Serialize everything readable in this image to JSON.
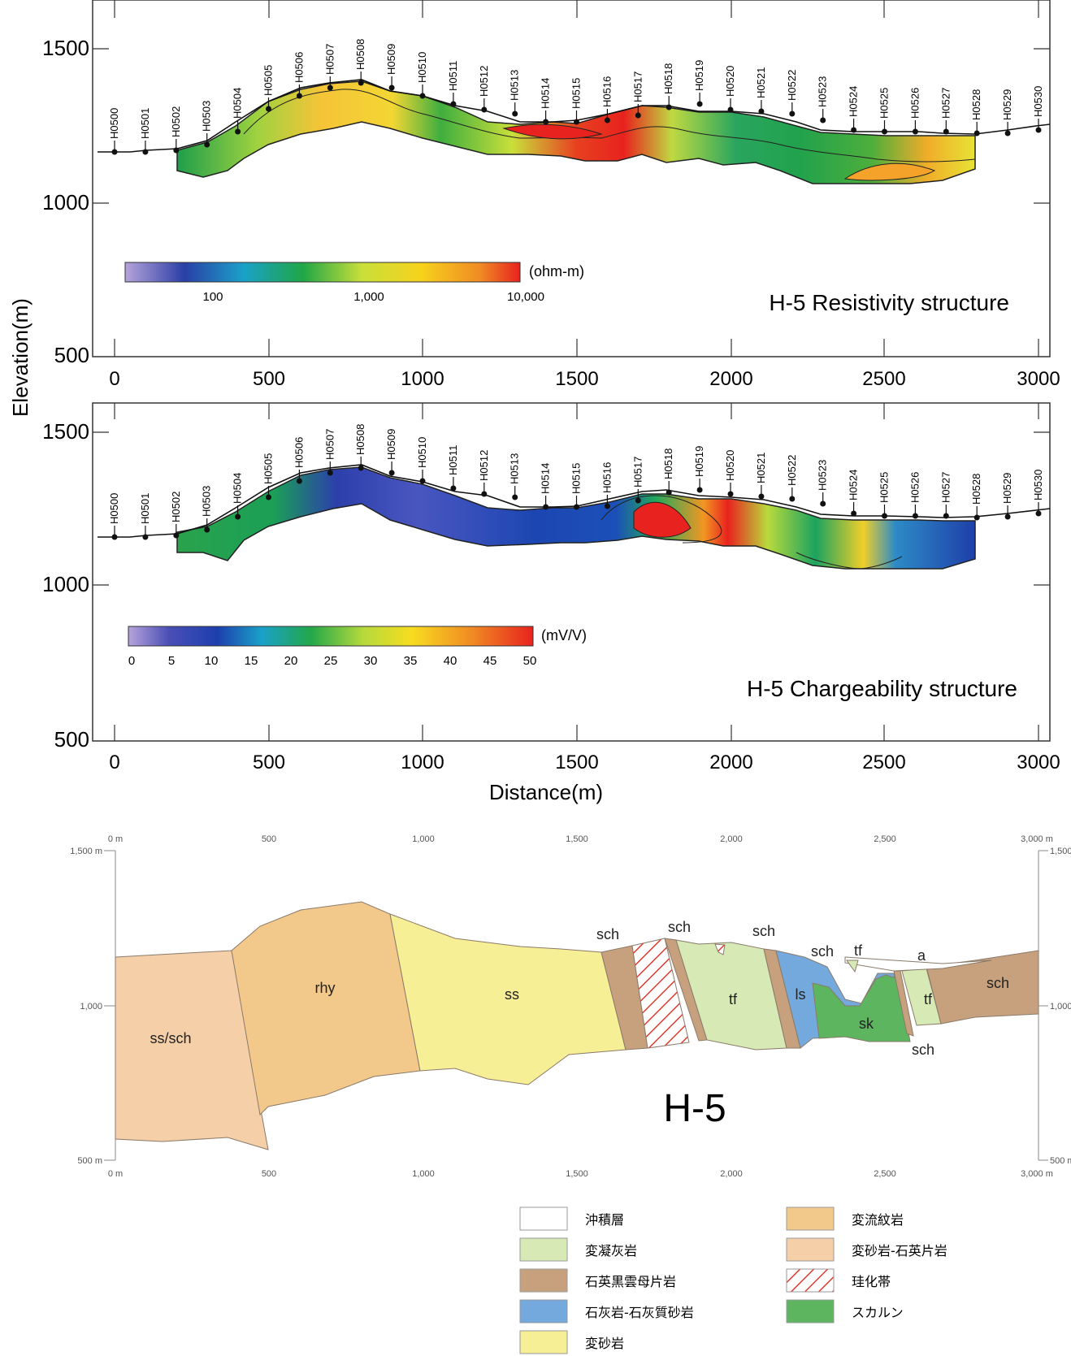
{
  "y_axis_label": "Elevation(m)",
  "x_axis_label": "Distance(m)",
  "resistivity_panel": {
    "title": "H-5 Resistivity structure",
    "colorbar_unit": "(ohm-m)",
    "colorbar_ticks": [
      "100",
      "1,000",
      "10,000"
    ],
    "y_ticks": [
      "1500",
      "1000",
      "500"
    ],
    "x_ticks": [
      "0",
      "500",
      "1000",
      "1500",
      "2000",
      "2500",
      "3000"
    ]
  },
  "chargeability_panel": {
    "title": "H-5 Chargeability structure",
    "colorbar_unit": "(mV/V)",
    "colorbar_ticks": [
      "0",
      "5",
      "10",
      "15",
      "20",
      "25",
      "30",
      "35",
      "40",
      "45",
      "50"
    ],
    "y_ticks": [
      "1500",
      "1000",
      "500"
    ],
    "x_ticks": [
      "0",
      "500",
      "1000",
      "1500",
      "2000",
      "2500",
      "3000"
    ]
  },
  "stations": [
    "H0500",
    "H0501",
    "H0502",
    "H0503",
    "H0504",
    "H0505",
    "H0506",
    "H0507",
    "H0508",
    "H0509",
    "H0510",
    "H0511",
    "H0512",
    "H0513",
    "H0514",
    "H0515",
    "H0516",
    "H0517",
    "H0518",
    "H0519",
    "H0520",
    "H0521",
    "H0522",
    "H0523",
    "H0524",
    "H0525",
    "H0526",
    "H0527",
    "H0528",
    "H0529",
    "H0530"
  ],
  "geology_section": {
    "title": "H-5",
    "top_ticks": [
      "0 m",
      "500",
      "1,000",
      "1,500",
      "2,000",
      "2,500",
      "3,000 m"
    ],
    "bottom_ticks": [
      "0 m",
      "500",
      "1,000",
      "1,500",
      "2,000",
      "2,500",
      "3,000 m"
    ],
    "left_ticks": [
      "1,500 m",
      "1,000",
      "500 m"
    ],
    "right_ticks": [
      "1,500",
      "1,000",
      "500 m"
    ],
    "unit_labels": {
      "ss_sch": "ss/sch",
      "rhy": "rhy",
      "ss": "ss",
      "sch_a": "sch",
      "sch_b": "sch",
      "sch_c": "sch",
      "sch_d": "sch",
      "sch_e": "sch",
      "sch_f": "sch",
      "tf_a": "tf",
      "tf_b": "tf",
      "tf_c": "tf",
      "ls": "ls",
      "sk": "sk",
      "a": "a"
    }
  },
  "legend": [
    {
      "label": "沖積層",
      "color": "#ffffff"
    },
    {
      "label": "変凝灰岩",
      "color": "#d7eab6"
    },
    {
      "label": "石英黒雲母片岩",
      "color": "#c7a17e"
    },
    {
      "label": "石灰岩-石灰質砂岩",
      "color": "#74a9de"
    },
    {
      "label": "変砂岩",
      "color": "#f7ef96"
    },
    {
      "label": "変流紋岩",
      "color": "#f2c98b"
    },
    {
      "label": "変砂岩-石英片岩",
      "color": "#f4cfa8"
    },
    {
      "label": "珪化帯",
      "color": "#e03a2f"
    },
    {
      "label": "スカルン",
      "color": "#5db55f"
    }
  ]
}
